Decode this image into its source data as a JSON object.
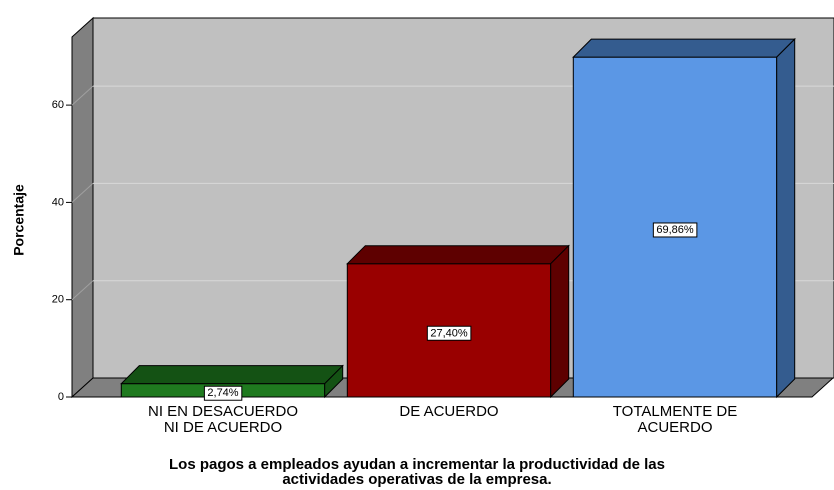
{
  "chart_data": {
    "type": "bar3d",
    "title": [
      "Los pagos a empleados ayudan a incrementar la productividad de las",
      "actividades operativas de la empresa."
    ],
    "y_label": "Porcentaje",
    "categories": [
      [
        "NI EN DESACUERDO",
        "NI DE ACUERDO"
      ],
      [
        "DE ACUERDO"
      ],
      [
        "TOTALMENTE DE",
        "ACUERDO"
      ]
    ],
    "values": [
      2.74,
      27.4,
      69.86
    ],
    "value_labels": [
      "2,74%",
      "27,40%",
      "69,86%"
    ],
    "colors": [
      "#1f7a1f",
      "#990000",
      "#5b97e5"
    ],
    "side_colors": [
      "#145214",
      "#5e0000",
      "#345c8f"
    ],
    "ylim": [
      0,
      74
    ],
    "yticks": [
      0,
      20,
      40,
      60
    ],
    "grid": true
  }
}
